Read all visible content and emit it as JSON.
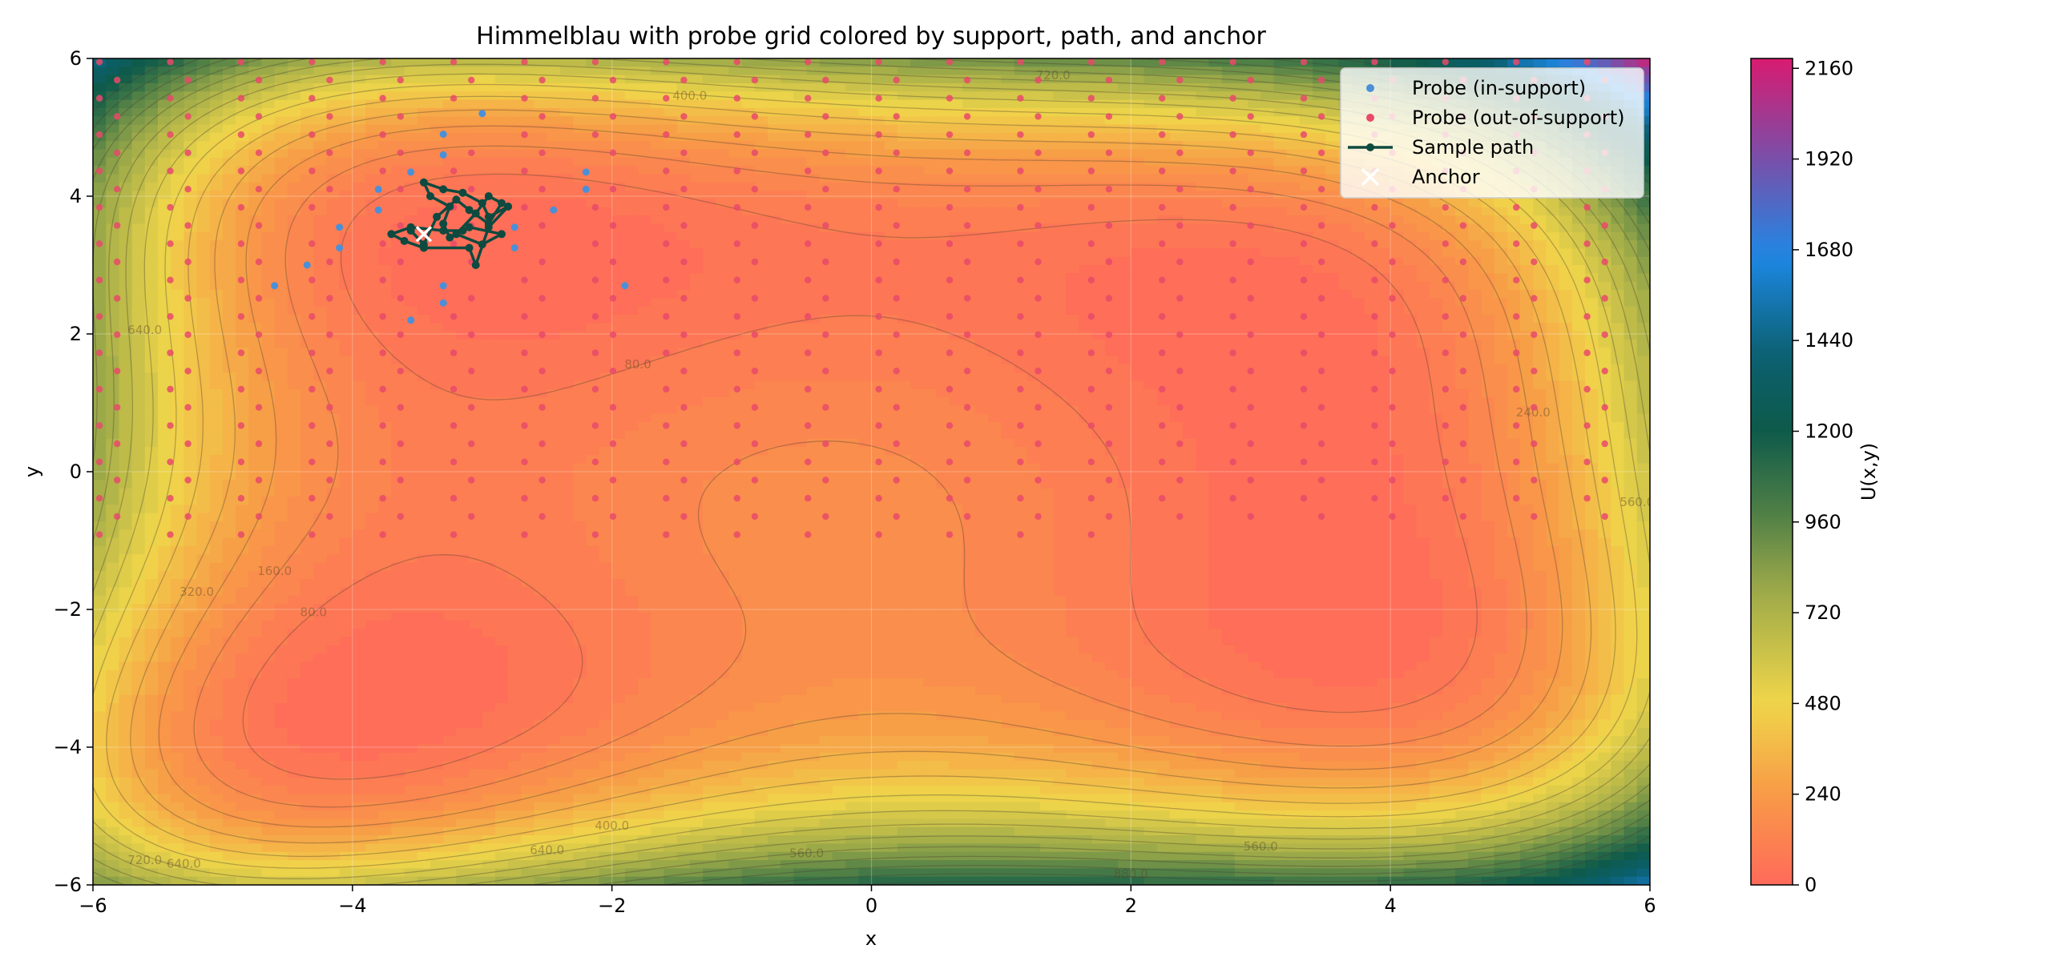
{
  "chart_data": {
    "type": "contour",
    "title": "Himmelblau with probe grid colored by support, path, and anchor",
    "xlabel": "x",
    "ylabel": "y",
    "xlim": [
      -6,
      6
    ],
    "ylim": [
      -6,
      6
    ],
    "xticks": [
      -6,
      -4,
      -2,
      0,
      2,
      4,
      6
    ],
    "yticks": [
      -6,
      -4,
      -2,
      0,
      2,
      4,
      6
    ],
    "xtick_labels": [
      "−6",
      "−4",
      "−2",
      "0",
      "2",
      "4",
      "6"
    ],
    "ytick_labels": [
      "−6",
      "−4",
      "−2",
      "0",
      "2",
      "4",
      "6"
    ],
    "grid": true,
    "colorbar": {
      "label": "U(x,y)",
      "ticks": [
        0,
        240,
        480,
        720,
        960,
        1200,
        1440,
        1680,
        1920,
        2160
      ],
      "range": [
        0,
        2186
      ],
      "colors": [
        "#ff6a5a",
        "#f89a47",
        "#f0d64a",
        "#9aa849",
        "#4f7f46",
        "#0e5a4a",
        "#0b6070",
        "#1e88e5",
        "#7a4fa8",
        "#d81b70"
      ]
    },
    "contour_levels": [
      80,
      160,
      240,
      320,
      400,
      480,
      560,
      640,
      720,
      800,
      880,
      960,
      1040,
      1120
    ],
    "contour_labels": [
      {
        "x": 3.0,
        "y": -5.5,
        "text": "560.0"
      },
      {
        "x": 2.0,
        "y": -5.9,
        "text": "880.0"
      },
      {
        "x": -0.5,
        "y": -5.6,
        "text": "560.0"
      },
      {
        "x": -2.0,
        "y": -5.2,
        "text": "400.0"
      },
      {
        "x": -2.5,
        "y": -5.55,
        "text": "640.0"
      },
      {
        "x": -5.6,
        "y": -5.7,
        "text": "720.0"
      },
      {
        "x": -5.3,
        "y": -5.75,
        "text": "640.0"
      },
      {
        "x": -4.3,
        "y": -2.1,
        "text": "80.0"
      },
      {
        "x": -4.6,
        "y": -1.5,
        "text": "160.0"
      },
      {
        "x": -5.2,
        "y": -1.8,
        "text": "320.0"
      },
      {
        "x": -1.8,
        "y": 1.5,
        "text": "80.0"
      },
      {
        "x": -5.6,
        "y": 2.0,
        "text": "640.0"
      },
      {
        "x": 5.1,
        "y": 0.8,
        "text": "240.0"
      },
      {
        "x": 5.9,
        "y": -0.5,
        "text": "560.0"
      },
      {
        "x": -1.4,
        "y": 5.4,
        "text": "400.0"
      },
      {
        "x": 1.4,
        "y": 5.7,
        "text": "720.0"
      }
    ],
    "legend": {
      "placement": "upper right",
      "entries": [
        {
          "label": "Probe (in-support)",
          "kind": "dot",
          "color": "#4a90d9"
        },
        {
          "label": "Probe (out-of-support)",
          "kind": "dot",
          "color": "#e84a6a"
        },
        {
          "label": "Sample path",
          "kind": "line",
          "color": "#0e4a40"
        },
        {
          "label": "Anchor",
          "kind": "cross",
          "color": "#ffffff"
        }
      ]
    },
    "probes": {
      "in_support": [
        [
          -3.0,
          5.2
        ],
        [
          -3.3,
          4.9
        ],
        [
          -3.3,
          4.6
        ],
        [
          -3.55,
          4.35
        ],
        [
          -2.2,
          4.35
        ],
        [
          -2.2,
          4.1
        ],
        [
          -3.8,
          4.1
        ],
        [
          -3.8,
          3.8
        ],
        [
          -2.45,
          3.8
        ],
        [
          -4.1,
          3.55
        ],
        [
          -2.75,
          3.55
        ],
        [
          -4.1,
          3.25
        ],
        [
          -2.75,
          3.25
        ],
        [
          -4.35,
          3.0
        ],
        [
          -4.6,
          2.7
        ],
        [
          -3.3,
          2.7
        ],
        [
          -1.9,
          2.7
        ],
        [
          -3.3,
          2.45
        ],
        [
          -3.55,
          2.2
        ]
      ],
      "out_of_support_count": 580,
      "out_of_support_grid": {
        "x0": -5.95,
        "dx": 0.273,
        "dy": 0.264
      }
    },
    "sample_path": [
      [
        -3.55,
        3.5
      ],
      [
        -3.45,
        3.3
      ],
      [
        -3.35,
        3.7
      ],
      [
        -3.2,
        3.95
      ],
      [
        -3.1,
        3.8
      ],
      [
        -2.95,
        3.6
      ],
      [
        -2.85,
        3.9
      ],
      [
        -2.95,
        4.0
      ],
      [
        -3.05,
        3.75
      ],
      [
        -3.2,
        3.45
      ],
      [
        -3.0,
        3.3
      ],
      [
        -2.85,
        3.45
      ],
      [
        -3.1,
        3.55
      ],
      [
        -3.25,
        3.4
      ],
      [
        -3.3,
        3.6
      ],
      [
        -3.25,
        3.85
      ],
      [
        -3.4,
        4.0
      ],
      [
        -3.45,
        4.2
      ],
      [
        -3.3,
        4.1
      ],
      [
        -3.15,
        4.05
      ],
      [
        -3.0,
        3.9
      ],
      [
        -2.95,
        3.7
      ],
      [
        -2.8,
        3.85
      ],
      [
        -2.95,
        3.55
      ],
      [
        -3.05,
        3.0
      ],
      [
        -3.1,
        3.25
      ],
      [
        -3.45,
        3.25
      ],
      [
        -3.6,
        3.35
      ],
      [
        -3.7,
        3.45
      ],
      [
        -3.55,
        3.55
      ],
      [
        -3.3,
        3.5
      ],
      [
        -3.15,
        3.5
      ]
    ],
    "anchor": [
      -3.45,
      3.45
    ]
  }
}
